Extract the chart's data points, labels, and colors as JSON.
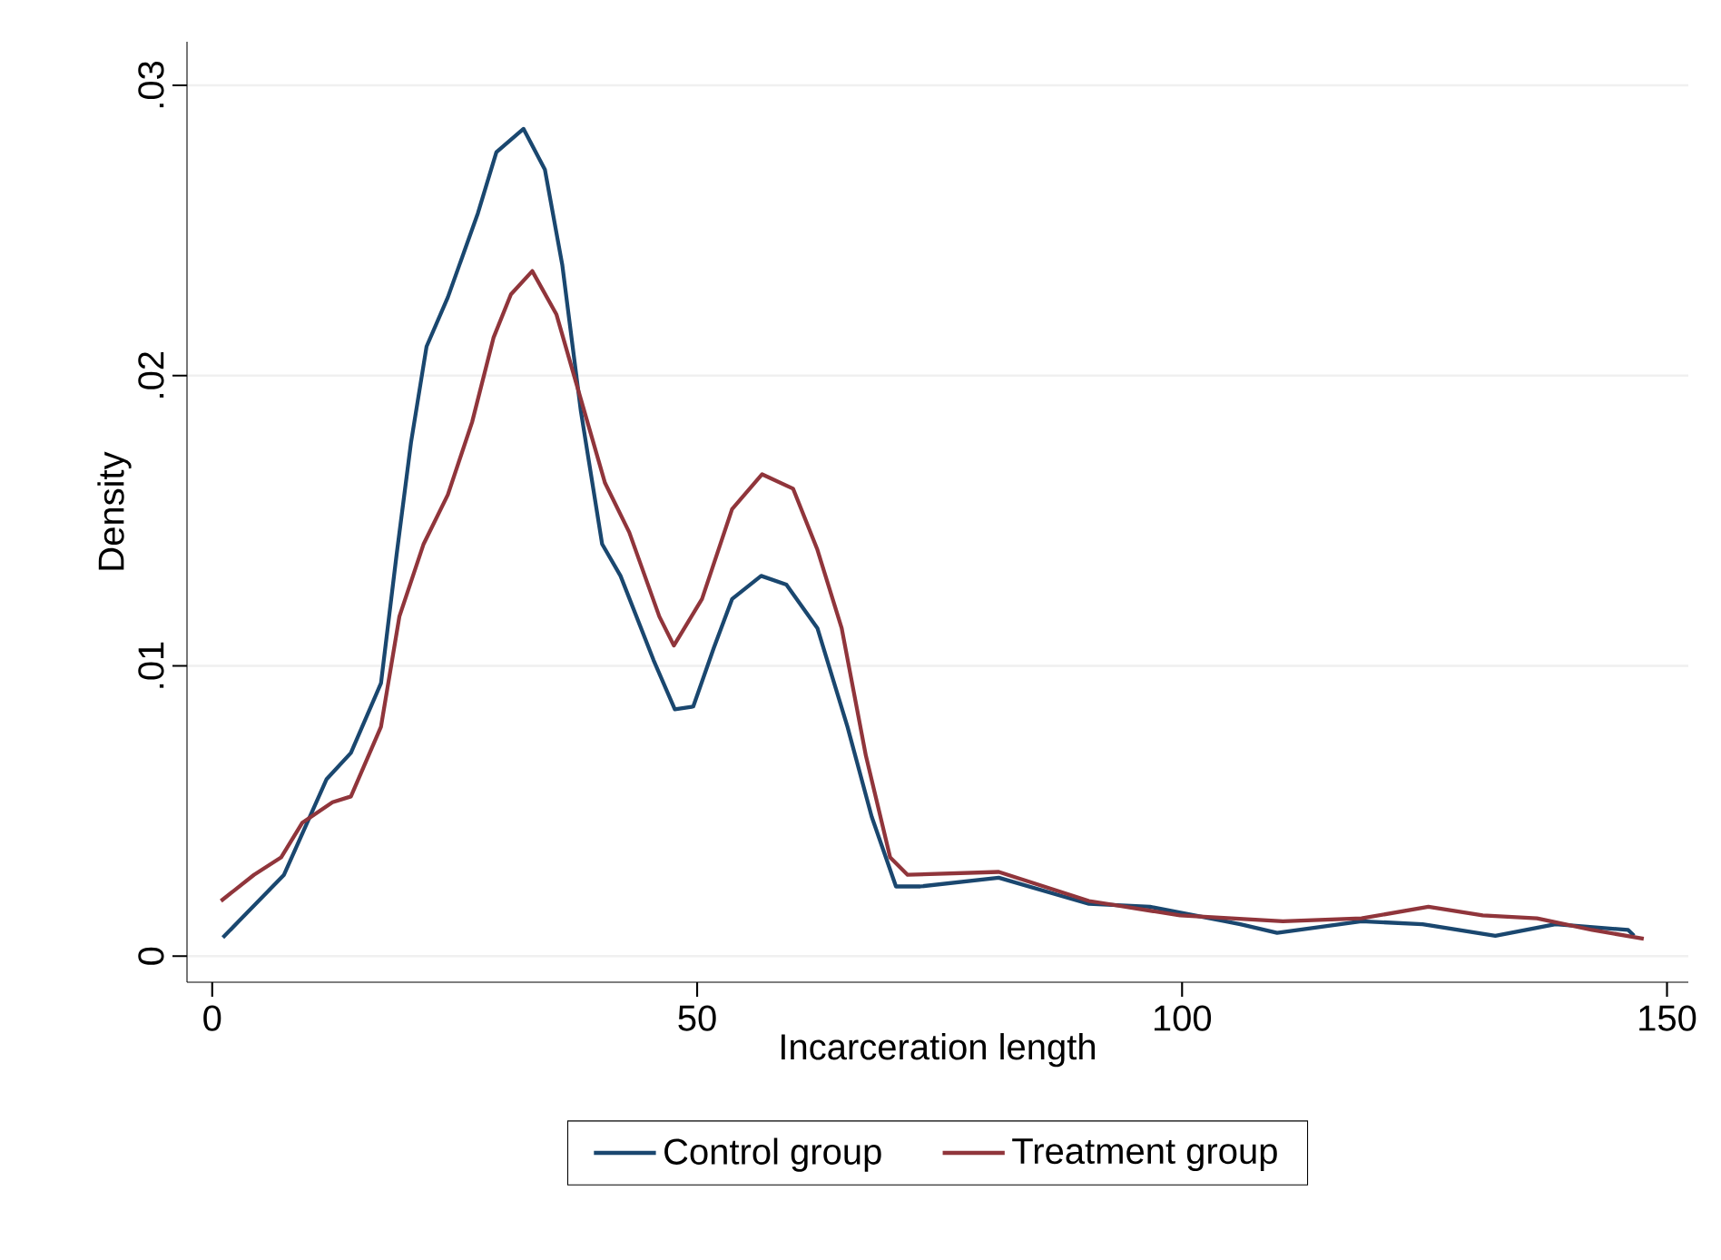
{
  "chart_data": {
    "type": "line",
    "xlabel": "Incarceration length",
    "ylabel": "Density",
    "xlim": [
      -2.6,
      152.2
    ],
    "ylim": [
      -0.0009,
      0.0315
    ],
    "xticks": [
      0,
      50,
      100,
      150
    ],
    "yticks": [
      0,
      {
        "value": 0.01,
        "label": ".01"
      },
      {
        "value": 0.02,
        "label": ".02"
      },
      {
        "value": 0.03,
        "label": ".03"
      }
    ],
    "grid": "y",
    "legend": "bottom",
    "marker": "none",
    "line_style": "solid",
    "series": [
      {
        "name": "Control group",
        "color": "#1a476f",
        "x": [
          1.1,
          7.4,
          11.8,
          14.3,
          17.4,
          19.0,
          20.5,
          22.1,
          24.3,
          27.4,
          29.3,
          32.1,
          34.3,
          36.1,
          38.0,
          40.2,
          42.1,
          45.5,
          47.7,
          49.6,
          51.7,
          53.6,
          56.6,
          59.2,
          62.4,
          65.5,
          68.0,
          70.5,
          73.0,
          81.1,
          90.4,
          96.7,
          106,
          109.8,
          118.5,
          124.8,
          132.3,
          138.5,
          146,
          146.6
        ],
        "values": [
          0.00064,
          0.0028,
          0.0061,
          0.007,
          0.0094,
          0.0138,
          0.0177,
          0.021,
          0.0227,
          0.0256,
          0.0277,
          0.0285,
          0.0271,
          0.0238,
          0.0188,
          0.0142,
          0.0131,
          0.0102,
          0.0085,
          0.0086,
          0.0106,
          0.0123,
          0.0131,
          0.0128,
          0.0113,
          0.0079,
          0.0048,
          0.0024,
          0.0024,
          0.0027,
          0.0018,
          0.0017,
          0.0011,
          0.0008,
          0.0012,
          0.0011,
          0.0007,
          0.0011,
          0.0009,
          0.0007
        ]
      },
      {
        "name": "Treatment group",
        "color": "#90353b",
        "x": [
          0.9,
          4.3,
          7.1,
          9.3,
          12.4,
          14.3,
          17.4,
          19.3,
          21.8,
          24.3,
          26.8,
          29.0,
          30.8,
          33.0,
          35.5,
          38.0,
          40.5,
          43.0,
          46.1,
          47.6,
          50.5,
          53.6,
          56.7,
          59.9,
          62.4,
          64.9,
          67.4,
          69.9,
          71.7,
          81.1,
          90.4,
          99.8,
          110.4,
          118.5,
          125.4,
          131,
          136.6,
          142.3,
          147.6
        ],
        "values": [
          0.0019,
          0.0028,
          0.0034,
          0.0046,
          0.0053,
          0.0055,
          0.0079,
          0.0117,
          0.0142,
          0.0159,
          0.0184,
          0.0213,
          0.0228,
          0.0236,
          0.0221,
          0.0192,
          0.0163,
          0.0146,
          0.0117,
          0.0107,
          0.0123,
          0.0154,
          0.0166,
          0.0161,
          0.014,
          0.0113,
          0.0069,
          0.0034,
          0.0028,
          0.0029,
          0.0019,
          0.0014,
          0.0012,
          0.0013,
          0.0017,
          0.0014,
          0.0013,
          0.0009,
          0.0006
        ]
      }
    ]
  }
}
